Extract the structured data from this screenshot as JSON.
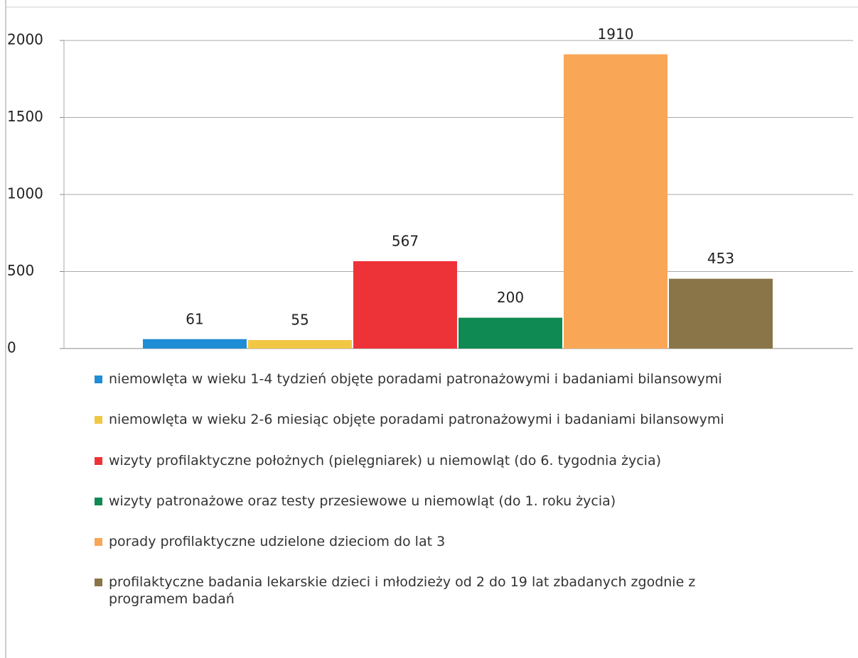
{
  "chart_data": {
    "type": "bar",
    "categories": [
      null
    ],
    "series": [
      {
        "name": "niemowlęta w wieku 1-4 tydzień objęte poradami patronażowymi i badaniami bilansowymi",
        "color": "#1f8dd6",
        "values": [
          61
        ]
      },
      {
        "name": "niemowlęta w wieku 2-6 miesiąc objęte poradami patronażowymi i badaniami bilansowymi",
        "color": "#f2c744",
        "values": [
          55
        ]
      },
      {
        "name": "wizyty profilaktyczne położnych (pielęgniarek) u niemowląt (do 6. tygodnia życia)",
        "color": "#ee3338",
        "values": [
          567
        ]
      },
      {
        "name": "wizyty patronażowe oraz testy przesiewowe u niemowląt (do 1. roku życia)",
        "color": "#0f8a52",
        "values": [
          200
        ]
      },
      {
        "name": "porady profilaktyczne udzielone dzieciom do lat 3",
        "color": "#f9a656",
        "values": [
          1910
        ]
      },
      {
        "name": "profilaktyczne badania lekarskie dzieci i młodzieży od 2 do 19 lat zbadanych zgodnie z programem badań",
        "color": "#8a7548",
        "values": [
          453
        ]
      }
    ],
    "ylim": [
      0,
      2000
    ],
    "yticks": [
      0,
      500,
      1000,
      1500,
      2000
    ],
    "grid": true,
    "legend": "bottom"
  }
}
